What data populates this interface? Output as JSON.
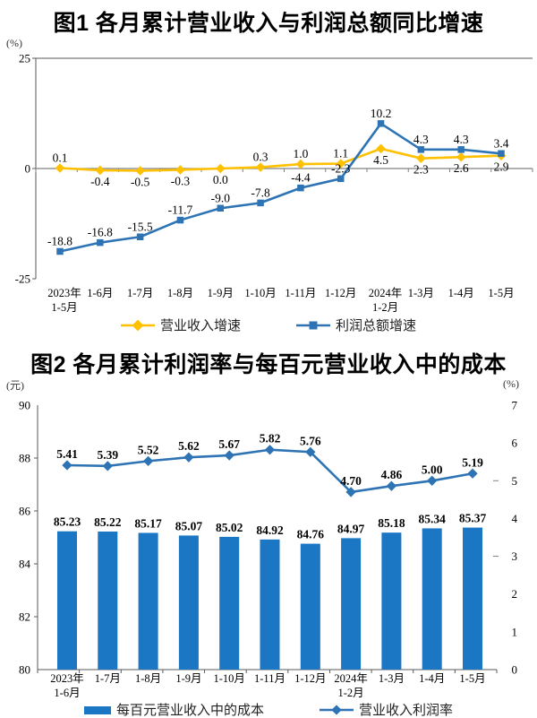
{
  "chart_data": [
    {
      "type": "line",
      "title": "图1 各月累计营业收入与利润总额同比增速",
      "y_unit": "(%)",
      "ylim": [
        -25,
        25
      ],
      "yticks": [
        25,
        0,
        -25
      ],
      "grid": false,
      "legend_position": "bottom",
      "categories": [
        [
          "2023年",
          "1-5月"
        ],
        "1-6月",
        "1-7月",
        "1-8月",
        "1-9月",
        "1-10月",
        "1-11月",
        "1-12月",
        [
          "2024年",
          "1-2月"
        ],
        "1-3月",
        "1-4月",
        "1-5月"
      ],
      "series": [
        {
          "name": "营业收入增速",
          "color": "#FFC000",
          "marker": "diamond",
          "values": [
            0.1,
            -0.4,
            -0.5,
            -0.3,
            0.0,
            0.3,
            1.0,
            1.1,
            4.5,
            2.3,
            2.6,
            2.9
          ]
        },
        {
          "name": "利润总额增速",
          "color": "#2E74B5",
          "marker": "square",
          "values": [
            -18.8,
            -16.8,
            -15.5,
            -11.7,
            -9.0,
            -7.8,
            -4.4,
            -2.3,
            10.2,
            4.3,
            4.3,
            3.4
          ]
        }
      ]
    },
    {
      "type": "bar+line",
      "title": "图2 各月累计利润率与每百元营业收入中的成本",
      "left_unit": "(元)",
      "right_unit": "(%)",
      "left_ylim": [
        80,
        90
      ],
      "left_yticks": [
        90,
        88,
        86,
        84,
        82,
        80
      ],
      "right_ylim": [
        0,
        7
      ],
      "right_yticks": [
        7,
        6,
        5,
        4,
        3,
        2,
        1,
        0
      ],
      "grid": false,
      "legend_position": "bottom",
      "categories": [
        [
          "2023年",
          "1-6月"
        ],
        "1-7月",
        "1-8月",
        "1-9月",
        "1-10月",
        "1-11月",
        "1-12月",
        [
          "2024年",
          "1-2月"
        ],
        "1-3月",
        "1-4月",
        "1-5月"
      ],
      "bar_series": {
        "name": "每百元营业收入中的成本",
        "color": "#1B76C4",
        "axis": "left",
        "values": [
          85.23,
          85.22,
          85.17,
          85.07,
          85.02,
          84.92,
          84.76,
          84.97,
          85.18,
          85.34,
          85.37
        ]
      },
      "line_series": {
        "name": "营业收入利润率",
        "color": "#2E74B5",
        "marker": "diamond",
        "axis": "right",
        "values": [
          5.41,
          5.39,
          5.52,
          5.62,
          5.67,
          5.82,
          5.76,
          4.7,
          4.86,
          5.0,
          5.19
        ]
      }
    }
  ],
  "colors": {
    "accent_yellow": "#FFC000",
    "accent_blue": "#2E74B5",
    "bar_blue": "#1B76C4",
    "axis_dark": "#595959",
    "axis_gray": "#808080",
    "text": "#000000"
  }
}
